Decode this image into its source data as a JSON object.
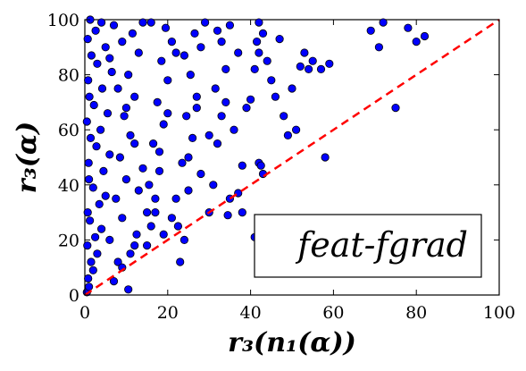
{
  "chart_data": {
    "type": "scatter",
    "title": "",
    "xlabel": "r₃(n₁(α))",
    "ylabel": "r₃(α)",
    "xlim": [
      0,
      100
    ],
    "ylim": [
      0,
      100
    ],
    "xticks": [
      "0",
      "20",
      "40",
      "60",
      "80",
      "100"
    ],
    "yticks": [
      "0",
      "20",
      "40",
      "60",
      "80",
      "100"
    ],
    "grid": false,
    "legend_placement": "lower-right",
    "annotation": "feat-fgrad",
    "reference_line": {
      "from": [
        0,
        0
      ],
      "to": [
        100,
        100
      ],
      "color": "#ff0000",
      "style": "dashed"
    },
    "point_color": "#0000ff",
    "points": [
      [
        0.5,
        1
      ],
      [
        1,
        3
      ],
      [
        0.8,
        6
      ],
      [
        2,
        9
      ],
      [
        1.5,
        12
      ],
      [
        3,
        15
      ],
      [
        0.6,
        18
      ],
      [
        2.5,
        21
      ],
      [
        4,
        24
      ],
      [
        1.2,
        27
      ],
      [
        0.7,
        30
      ],
      [
        3.5,
        33
      ],
      [
        5,
        36
      ],
      [
        2,
        39
      ],
      [
        1,
        42
      ],
      [
        4.5,
        45
      ],
      [
        0.9,
        48
      ],
      [
        6,
        51
      ],
      [
        2.8,
        54
      ],
      [
        1.4,
        57
      ],
      [
        3.8,
        60
      ],
      [
        0.5,
        63
      ],
      [
        5.5,
        66
      ],
      [
        2.2,
        69
      ],
      [
        1.1,
        72
      ],
      [
        4.2,
        75
      ],
      [
        0.8,
        78
      ],
      [
        6.5,
        81
      ],
      [
        3,
        84
      ],
      [
        1.6,
        87
      ],
      [
        5,
        90
      ],
      [
        0.7,
        93
      ],
      [
        2.6,
        96
      ],
      [
        4,
        99
      ],
      [
        1.3,
        100
      ],
      [
        7,
        5
      ],
      [
        8,
        12
      ],
      [
        6,
        20
      ],
      [
        9,
        28
      ],
      [
        7.5,
        35
      ],
      [
        10,
        42
      ],
      [
        8.5,
        50
      ],
      [
        11,
        58
      ],
      [
        9.5,
        65
      ],
      [
        12,
        72
      ],
      [
        10.5,
        80
      ],
      [
        13,
        88
      ],
      [
        11.5,
        95
      ],
      [
        14,
        99
      ],
      [
        7,
        98
      ],
      [
        9,
        92
      ],
      [
        6,
        86
      ],
      [
        8,
        75
      ],
      [
        10,
        68
      ],
      [
        12,
        55
      ],
      [
        14,
        46
      ],
      [
        13,
        38
      ],
      [
        15,
        30
      ],
      [
        12.5,
        22
      ],
      [
        11,
        15
      ],
      [
        10.5,
        2
      ],
      [
        9,
        10
      ],
      [
        12,
        18
      ],
      [
        15,
        18
      ],
      [
        16,
        25
      ],
      [
        17,
        35
      ],
      [
        18,
        45
      ],
      [
        16.5,
        55
      ],
      [
        19,
        62
      ],
      [
        17.5,
        70
      ],
      [
        20,
        78
      ],
      [
        18.5,
        85
      ],
      [
        21,
        92
      ],
      [
        19.5,
        97
      ],
      [
        16,
        99
      ],
      [
        22,
        88
      ],
      [
        20,
        66
      ],
      [
        18,
        52
      ],
      [
        15.5,
        40
      ],
      [
        17,
        30
      ],
      [
        19,
        22
      ],
      [
        21,
        28
      ],
      [
        22,
        35
      ],
      [
        23,
        12
      ],
      [
        24,
        20
      ],
      [
        22.5,
        25
      ],
      [
        25,
        38
      ],
      [
        23.5,
        48
      ],
      [
        26,
        57
      ],
      [
        24.5,
        65
      ],
      [
        27,
        72
      ],
      [
        25.5,
        80
      ],
      [
        28,
        90
      ],
      [
        26.5,
        95
      ],
      [
        29,
        99
      ],
      [
        24,
        87
      ],
      [
        27,
        68
      ],
      [
        25,
        50
      ],
      [
        28,
        44
      ],
      [
        30,
        58
      ],
      [
        30,
        30
      ],
      [
        31,
        40
      ],
      [
        32,
        55
      ],
      [
        33,
        65
      ],
      [
        31.5,
        75
      ],
      [
        34,
        82
      ],
      [
        33,
        92
      ],
      [
        35,
        98
      ],
      [
        32,
        96
      ],
      [
        34,
        70
      ],
      [
        36,
        60
      ],
      [
        35,
        35
      ],
      [
        34.5,
        29
      ],
      [
        37,
        37
      ],
      [
        38,
        47
      ],
      [
        37,
        88
      ],
      [
        39,
        68
      ],
      [
        38,
        30
      ],
      [
        40,
        71
      ],
      [
        41,
        82
      ],
      [
        42,
        88
      ],
      [
        41.5,
        92
      ],
      [
        43,
        95
      ],
      [
        42,
        99
      ],
      [
        44,
        85
      ],
      [
        42,
        48
      ],
      [
        43,
        44
      ],
      [
        42.5,
        47
      ],
      [
        41,
        21
      ],
      [
        45,
        78
      ],
      [
        46,
        72
      ],
      [
        49,
        58
      ],
      [
        50,
        75
      ],
      [
        51,
        60
      ],
      [
        52,
        83
      ],
      [
        53,
        88
      ],
      [
        54,
        82
      ],
      [
        55,
        85
      ],
      [
        57,
        82
      ],
      [
        58,
        50
      ],
      [
        59,
        84
      ],
      [
        48,
        65
      ],
      [
        47,
        93
      ],
      [
        69,
        96
      ],
      [
        71,
        90
      ],
      [
        72,
        99
      ],
      [
        75,
        68
      ],
      [
        80,
        92
      ],
      [
        82,
        94
      ],
      [
        78,
        97
      ]
    ]
  }
}
